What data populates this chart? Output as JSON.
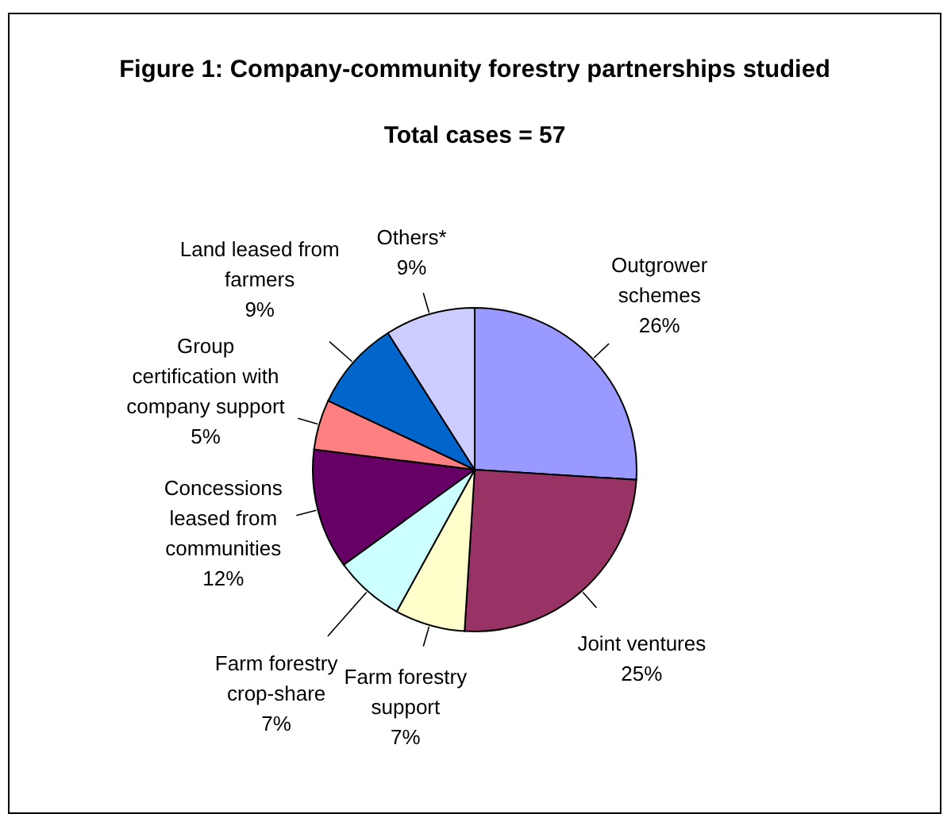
{
  "chart_data": {
    "type": "pie",
    "title": "Figure 1: Company-community forestry partnerships studied",
    "subtitle": "Total cases = 57",
    "categories": [
      "Outgrower schemes",
      "Joint ventures",
      "Farm forestry support",
      "Farm forestry crop-share",
      "Concessions leased from communities",
      "Group certification with company support",
      "Land leased from farmers",
      "Others*"
    ],
    "values": [
      26,
      25,
      7,
      7,
      12,
      5,
      9,
      9
    ],
    "value_labels": [
      "26%",
      "25%",
      "7%",
      "7%",
      "12%",
      "5%",
      "9%",
      "9%"
    ],
    "colors": [
      "#9999ff",
      "#993366",
      "#ffffcc",
      "#ccffff",
      "#660066",
      "#ff8080",
      "#0066cc",
      "#ccccff"
    ]
  }
}
